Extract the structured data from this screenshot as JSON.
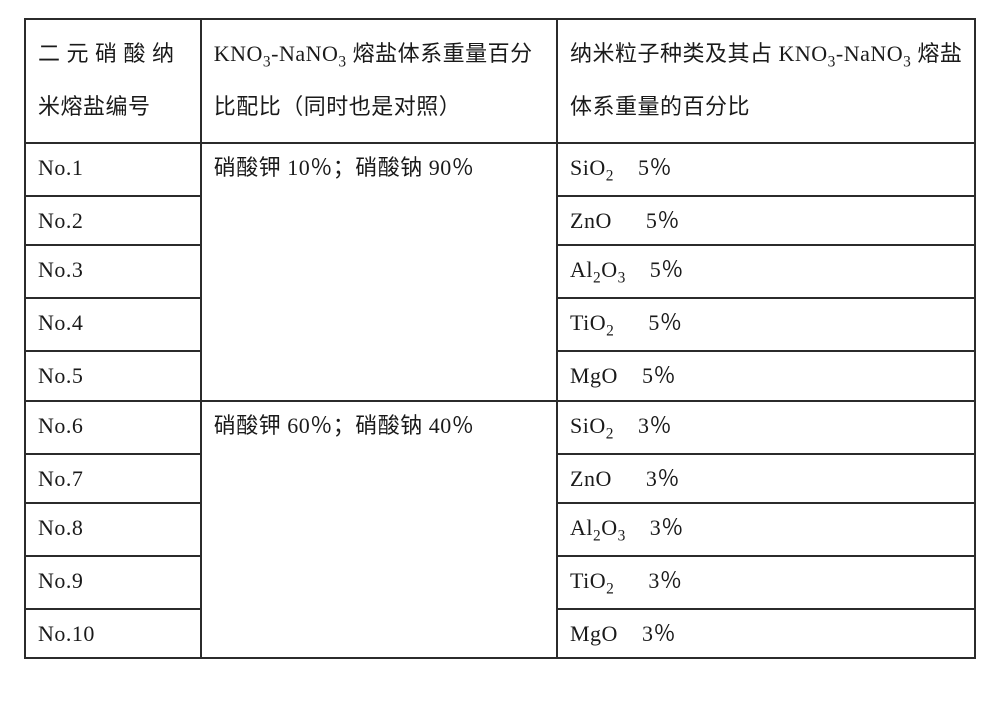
{
  "table": {
    "header": {
      "col1": "二 元 硝 酸 纳米熔盐编号",
      "col2_pre": "KNO",
      "col2_mid": "-NaNO",
      "col2_post": " 熔盐体系重量百分比配比（同时也是对照）",
      "col3_pre": "纳米粒子种类及其占  KNO",
      "col3_mid": "-NaNO",
      "col3_post": " 熔盐体系重量的百分比",
      "sub3": "3"
    },
    "group1_ratio": "硝酸钾 10％；硝酸钠 90％",
    "group2_ratio": "硝酸钾 60％；硝酸钠 40％",
    "rows": [
      {
        "no": "No.1",
        "particle": "SiO",
        "sub": "2",
        "pct": "5％",
        "gap": "gap"
      },
      {
        "no": "No.2",
        "particle": "ZnO",
        "sub": "",
        "pct": "5％",
        "gap": "gap2"
      },
      {
        "no": "No.3",
        "particle": "Al",
        "sub": "2",
        "o": "O",
        "sub2": "3",
        "pct": "5％",
        "gap": "gap"
      },
      {
        "no": "No.4",
        "particle": "TiO",
        "sub": "2",
        "pct": "5％",
        "gap": "gap2"
      },
      {
        "no": "No.5",
        "particle": "MgO",
        "sub": "",
        "pct": "5％",
        "gap": "gap"
      },
      {
        "no": "No.6",
        "particle": "SiO",
        "sub": "2",
        "pct": "3％",
        "gap": "gap"
      },
      {
        "no": "No.7",
        "particle": "ZnO",
        "sub": "",
        "pct": "3％",
        "gap": "gap2"
      },
      {
        "no": "No.8",
        "particle": "Al",
        "sub": "2",
        "o": "O",
        "sub2": "3",
        "pct": "3％",
        "gap": "gap"
      },
      {
        "no": "No.9",
        "particle": "TiO",
        "sub": "2",
        "pct": "3％",
        "gap": "gap2"
      },
      {
        "no": "No.10",
        "particle": "MgO",
        "sub": "",
        "pct": "3％",
        "gap": "gap"
      }
    ]
  }
}
